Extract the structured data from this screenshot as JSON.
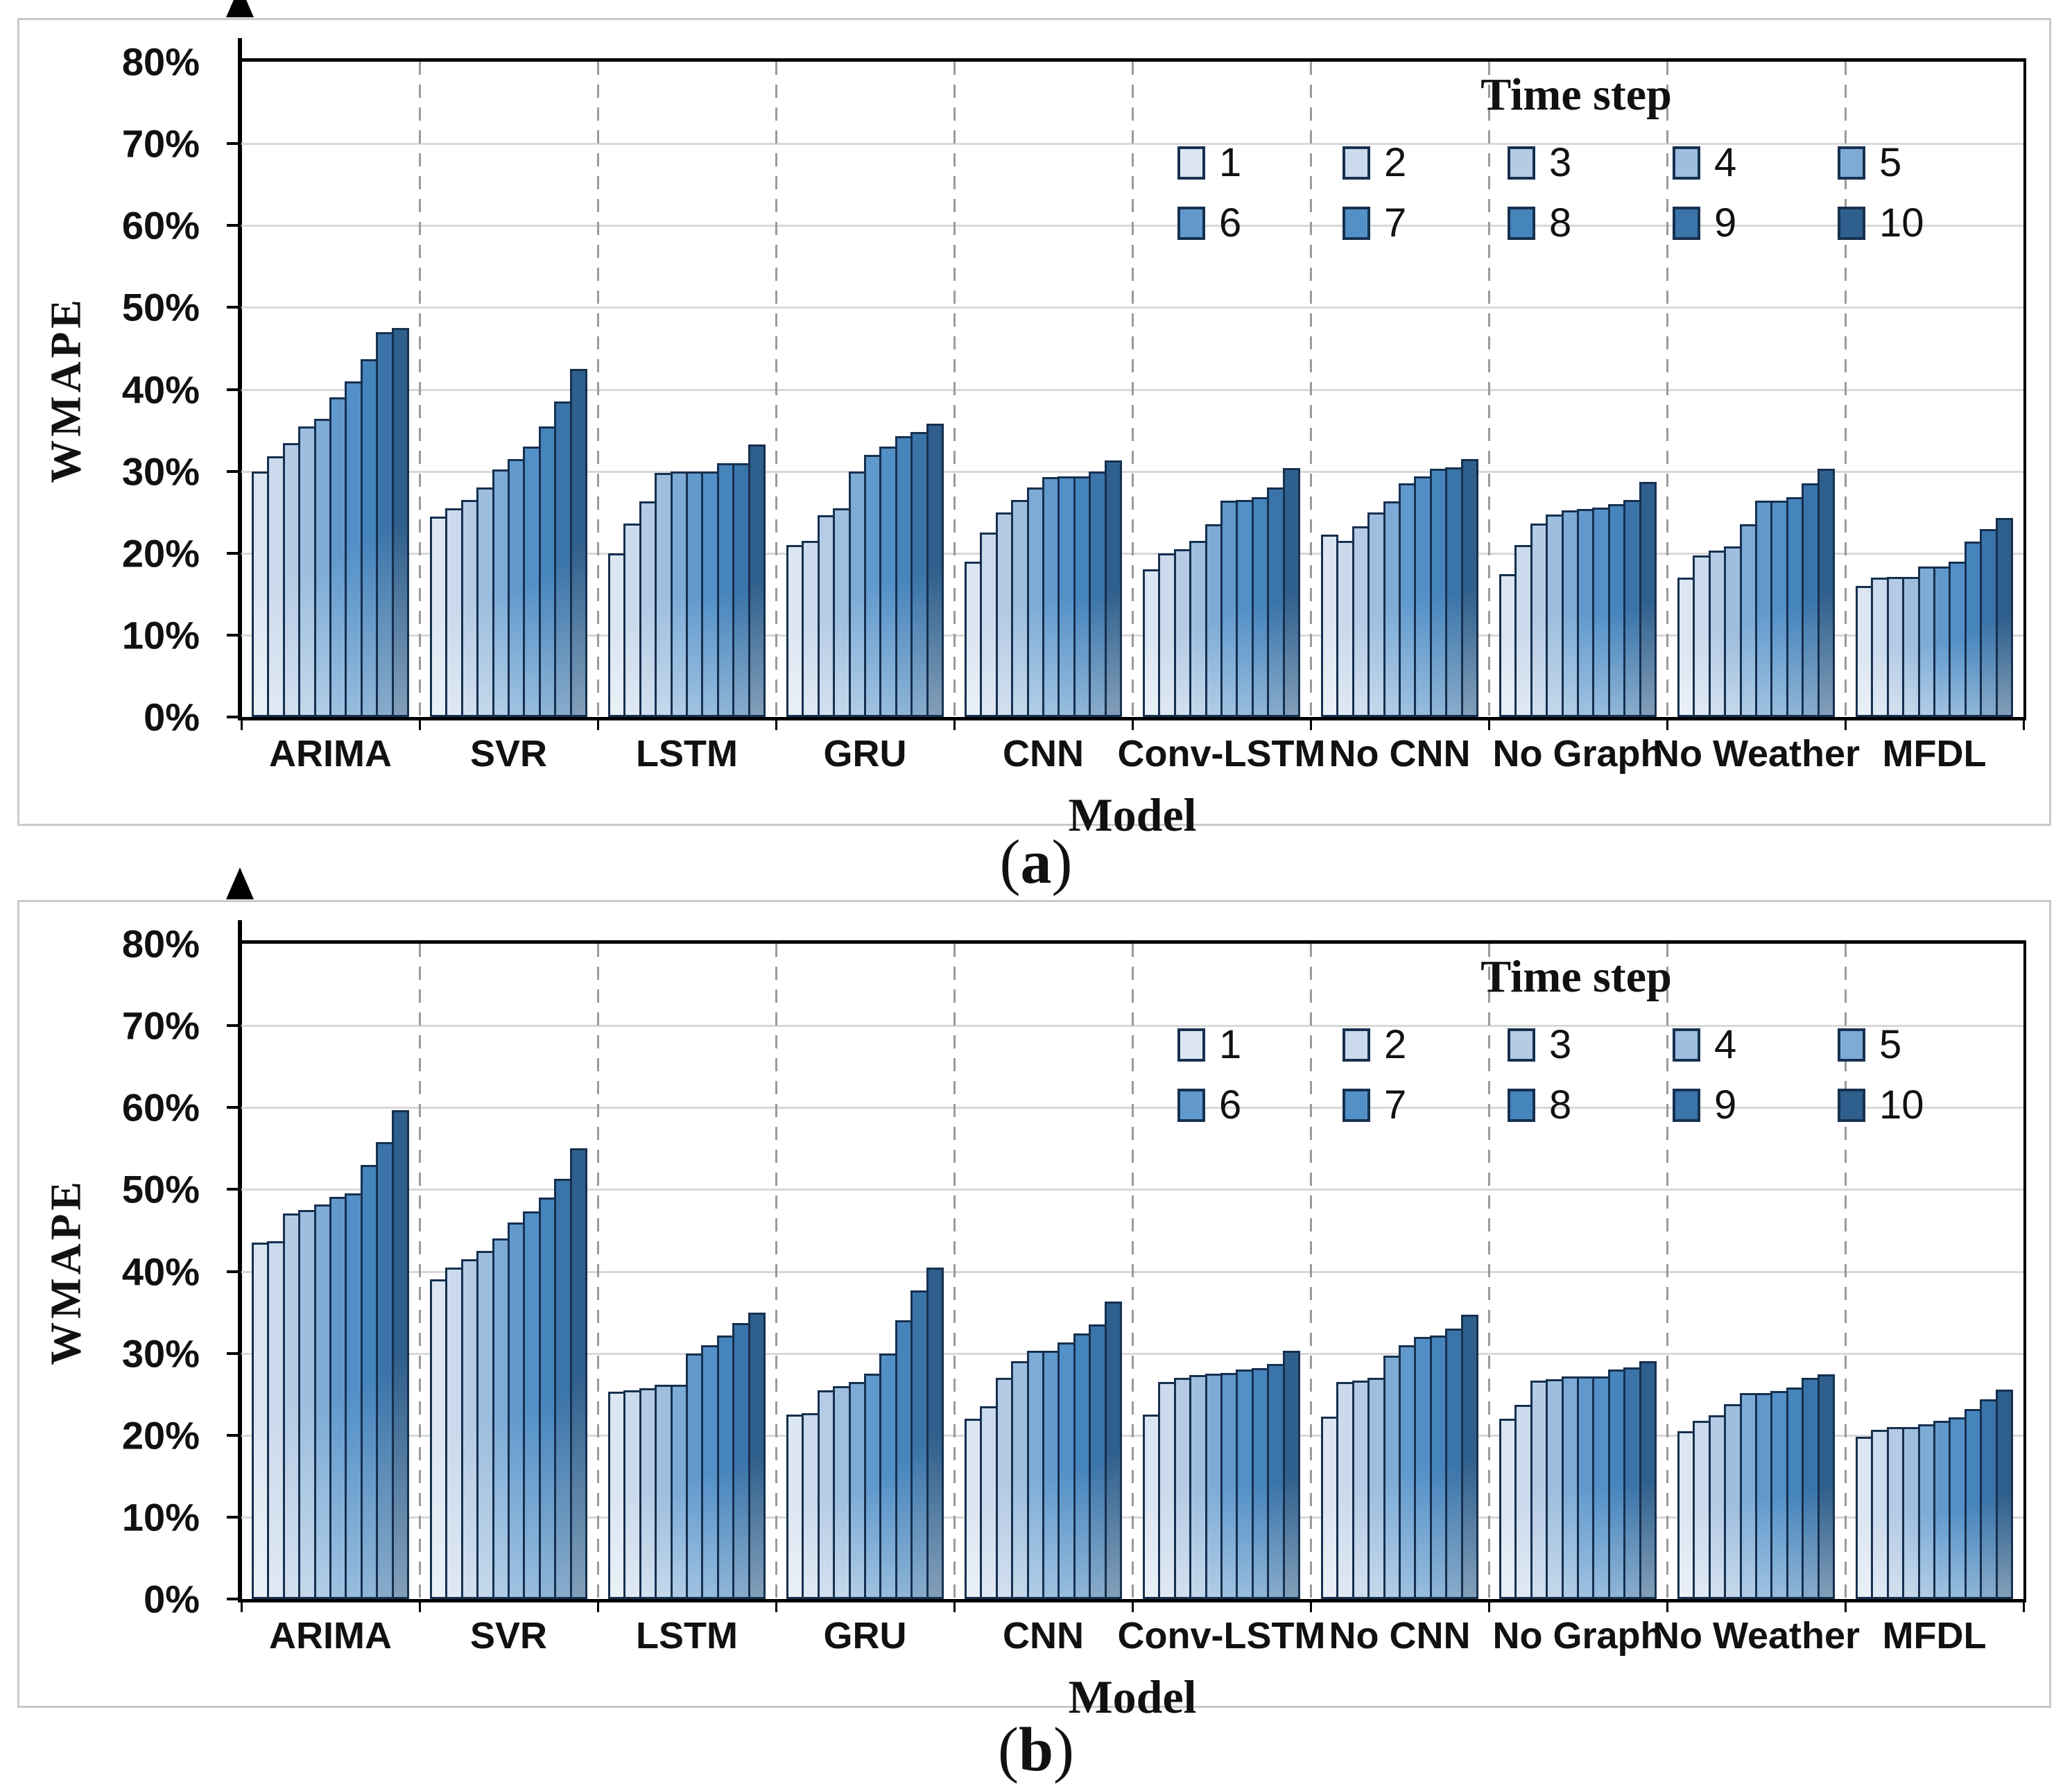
{
  "figure": {
    "captions": [
      {
        "open": "(",
        "letter": "a",
        "close": ")"
      },
      {
        "open": "(",
        "letter": "b",
        "close": ")"
      }
    ]
  },
  "axes": {
    "y_label": "WMAPE",
    "x_label": "Model",
    "y_ticks": [
      "80%",
      "70%",
      "60%",
      "50%",
      "40%",
      "30%",
      "20%",
      "10%",
      "0%"
    ],
    "y_max_percent": 80,
    "y_tick_step_percent": 10
  },
  "legend": {
    "title": "Time step",
    "entries": [
      {
        "label": "1",
        "color": "#dce6f2"
      },
      {
        "label": "2",
        "color": "#cbdaec"
      },
      {
        "label": "3",
        "color": "#b5cbe5"
      },
      {
        "label": "4",
        "color": "#9dbede"
      },
      {
        "label": "5",
        "color": "#7dabd6"
      },
      {
        "label": "6",
        "color": "#6199cd"
      },
      {
        "label": "7",
        "color": "#5390c7"
      },
      {
        "label": "8",
        "color": "#4684bc"
      },
      {
        "label": "9",
        "color": "#3a74a9"
      },
      {
        "label": "10",
        "color": "#2f5f8c"
      }
    ]
  },
  "colors": {
    "bar_border": "#16304f",
    "axis": "#000000",
    "gridline": "#d8d8d8",
    "separator": "#9a9a9a",
    "panel_border": "#c9c9c9"
  },
  "chart_data": [
    {
      "type": "bar",
      "panel": "a",
      "title": "(a)",
      "ylabel": "WMAPE",
      "xlabel": "Model",
      "ylim": [
        0,
        80
      ],
      "units": "percent WMAPE",
      "grid": "horizontal lines every 10%, dashed vertical separators between model groups",
      "legend_position": "top-right inside plot",
      "categories": [
        "ARIMA",
        "SVR",
        "LSTM",
        "GRU",
        "CNN",
        "Conv-LSTM",
        "No CNN",
        "No Graph",
        "No Weather",
        "MFDL"
      ],
      "series": [
        {
          "name": "1",
          "values": [
            30.0,
            24.5,
            20.0,
            21.0,
            19.0,
            18.0,
            22.3,
            17.4,
            17.0,
            16.0
          ]
        },
        {
          "name": "2",
          "values": [
            31.8,
            25.5,
            23.6,
            21.5,
            22.5,
            20.0,
            21.5,
            21.0,
            19.7,
            17.0
          ]
        },
        {
          "name": "3",
          "values": [
            33.4,
            26.5,
            26.3,
            24.6,
            25.0,
            20.5,
            23.3,
            23.6,
            20.3,
            17.1
          ]
        },
        {
          "name": "4",
          "values": [
            35.5,
            28.0,
            29.8,
            25.5,
            26.5,
            21.5,
            25.0,
            24.7,
            20.8,
            17.1
          ]
        },
        {
          "name": "5",
          "values": [
            36.4,
            30.2,
            30.0,
            30.0,
            28.0,
            23.5,
            26.3,
            25.2,
            23.5,
            18.4
          ]
        },
        {
          "name": "6",
          "values": [
            39.0,
            31.5,
            30.0,
            32.0,
            29.3,
            26.4,
            28.5,
            25.4,
            26.4,
            18.4
          ]
        },
        {
          "name": "7",
          "values": [
            41.0,
            33.0,
            30.0,
            33.0,
            29.4,
            26.5,
            29.4,
            25.6,
            26.4,
            19.0
          ]
        },
        {
          "name": "8",
          "values": [
            43.7,
            35.5,
            31.0,
            34.3,
            29.4,
            26.8,
            30.3,
            26.0,
            26.8,
            21.4
          ]
        },
        {
          "name": "9",
          "values": [
            47.0,
            38.5,
            31.0,
            34.8,
            30.0,
            28.0,
            30.5,
            26.5,
            28.5,
            22.9
          ]
        },
        {
          "name": "10",
          "values": [
            47.5,
            42.5,
            33.3,
            35.8,
            31.3,
            30.4,
            31.5,
            28.7,
            30.3,
            24.3
          ]
        }
      ]
    },
    {
      "type": "bar",
      "panel": "b",
      "title": "(b)",
      "ylabel": "WMAPE",
      "xlabel": "Model",
      "ylim": [
        0,
        80
      ],
      "units": "percent WMAPE",
      "grid": "horizontal lines every 10%, dashed vertical separators between model groups",
      "legend_position": "top-right inside plot",
      "categories": [
        "ARIMA",
        "SVR",
        "LSTM",
        "GRU",
        "CNN",
        "Conv-LSTM",
        "No CNN",
        "No Graph",
        "No Weather",
        "MFDL"
      ],
      "series": [
        {
          "name": "1",
          "values": [
            43.5,
            39.0,
            25.3,
            22.5,
            22.0,
            22.5,
            22.3,
            22.0,
            20.5,
            19.8
          ]
        },
        {
          "name": "2",
          "values": [
            43.7,
            40.5,
            25.5,
            22.7,
            23.5,
            26.5,
            26.5,
            23.7,
            21.8,
            20.7
          ]
        },
        {
          "name": "3",
          "values": [
            47.1,
            41.5,
            25.7,
            25.5,
            27.0,
            27.0,
            26.7,
            26.7,
            22.4,
            21.0
          ]
        },
        {
          "name": "4",
          "values": [
            47.5,
            42.5,
            26.2,
            26.0,
            29.0,
            27.3,
            27.0,
            26.8,
            23.8,
            21.0
          ]
        },
        {
          "name": "5",
          "values": [
            48.2,
            44.0,
            26.2,
            26.5,
            30.3,
            27.5,
            29.7,
            27.2,
            25.1,
            21.3
          ]
        },
        {
          "name": "6",
          "values": [
            49.1,
            46.0,
            30.0,
            27.5,
            30.3,
            27.6,
            31.0,
            27.2,
            25.1,
            21.8
          ]
        },
        {
          "name": "7",
          "values": [
            49.5,
            47.3,
            31.0,
            30.0,
            31.3,
            28.0,
            32.0,
            27.2,
            25.4,
            22.2
          ]
        },
        {
          "name": "8",
          "values": [
            53.0,
            49.0,
            32.2,
            34.0,
            32.4,
            28.2,
            32.2,
            28.0,
            25.8,
            23.2
          ]
        },
        {
          "name": "9",
          "values": [
            55.8,
            51.3,
            33.7,
            37.7,
            33.5,
            28.7,
            33.0,
            28.3,
            27.0,
            24.4
          ]
        },
        {
          "name": "10",
          "values": [
            59.7,
            55.0,
            35.0,
            40.5,
            36.3,
            30.3,
            34.7,
            29.0,
            27.4,
            25.6
          ]
        }
      ]
    }
  ]
}
